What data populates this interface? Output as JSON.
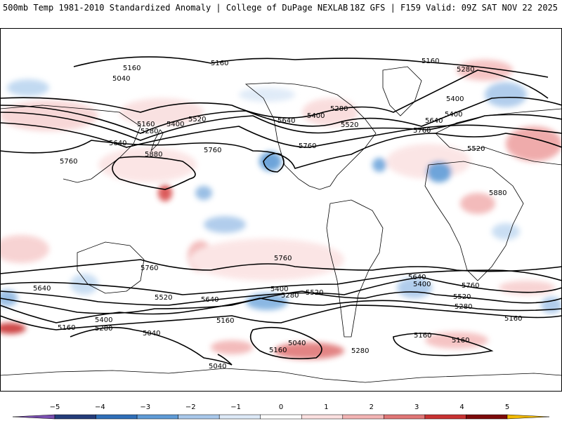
{
  "header": {
    "left_title": "500mb Temp 1981-2010 Standardized Anomaly | College of DuPage NEXLAB",
    "right_title": "18Z GFS | F159 Valid: 09Z SAT NOV 22 2025"
  },
  "contour_labels": [
    {
      "id": "c1",
      "text": "5160"
    },
    {
      "id": "c2",
      "text": "5160"
    },
    {
      "id": "c3",
      "text": "5040"
    },
    {
      "id": "c4",
      "text": "5160"
    },
    {
      "id": "c5",
      "text": "5280"
    },
    {
      "id": "c6",
      "text": "5400"
    },
    {
      "id": "c7",
      "text": "5520"
    },
    {
      "id": "c8",
      "text": "5640"
    },
    {
      "id": "c9",
      "text": "5760"
    },
    {
      "id": "c10",
      "text": "5880"
    },
    {
      "id": "c11",
      "text": "5760"
    },
    {
      "id": "c12",
      "text": "5640"
    },
    {
      "id": "c13",
      "text": "5400"
    },
    {
      "id": "c14",
      "text": "5280"
    },
    {
      "id": "c15",
      "text": "5520"
    },
    {
      "id": "c16",
      "text": "5760"
    },
    {
      "id": "c17",
      "text": "5160"
    },
    {
      "id": "c18",
      "text": "5280"
    },
    {
      "id": "c19",
      "text": "5400"
    },
    {
      "id": "c20",
      "text": "5400"
    },
    {
      "id": "c21",
      "text": "5640"
    },
    {
      "id": "c22",
      "text": "5760"
    },
    {
      "id": "c23",
      "text": "5520"
    },
    {
      "id": "c24",
      "text": "5880"
    },
    {
      "id": "c25",
      "text": "5760"
    },
    {
      "id": "c26",
      "text": "5760"
    },
    {
      "id": "c27",
      "text": "5640"
    },
    {
      "id": "c28",
      "text": "5520"
    },
    {
      "id": "c29",
      "text": "5640"
    },
    {
      "id": "c30",
      "text": "5400"
    },
    {
      "id": "c31",
      "text": "5280"
    },
    {
      "id": "c32",
      "text": "5160"
    },
    {
      "id": "c33",
      "text": "5040"
    },
    {
      "id": "c34",
      "text": "5040"
    },
    {
      "id": "c35",
      "text": "5400"
    },
    {
      "id": "c36",
      "text": "5280"
    },
    {
      "id": "c37",
      "text": "5520"
    },
    {
      "id": "c38",
      "text": "5160"
    },
    {
      "id": "c39",
      "text": "5040"
    },
    {
      "id": "c40",
      "text": "5160"
    },
    {
      "id": "c41",
      "text": "5280"
    },
    {
      "id": "c42",
      "text": "5640"
    },
    {
      "id": "c43",
      "text": "5400"
    },
    {
      "id": "c44",
      "text": "5760"
    },
    {
      "id": "c45",
      "text": "5520"
    },
    {
      "id": "c46",
      "text": "5280"
    },
    {
      "id": "c47",
      "text": "5160"
    },
    {
      "id": "c48",
      "text": "5160"
    },
    {
      "id": "c49",
      "text": "5160"
    }
  ],
  "colorbar": {
    "ticks": [
      "−5",
      "−4",
      "−3",
      "−2",
      "−1",
      "0",
      "1",
      "2",
      "3",
      "4",
      "5"
    ],
    "colors": [
      "#7a4fb0",
      "#243c7a",
      "#2f6fb8",
      "#5f9bd6",
      "#a9c8ea",
      "#dde9f7",
      "#ffffff",
      "#fbe0e0",
      "#f2b4b4",
      "#e07777",
      "#c83232",
      "#7d0a0a",
      "#f2b900"
    ]
  }
}
